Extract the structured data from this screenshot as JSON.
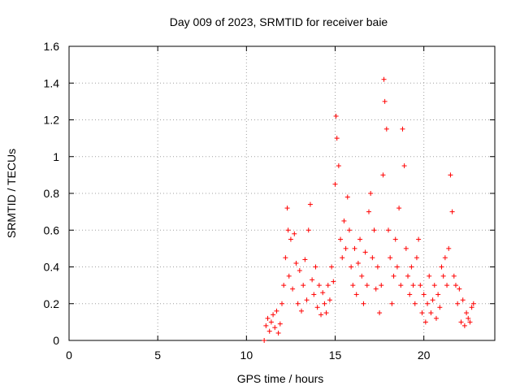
{
  "chart_data": {
    "type": "scatter",
    "title": "Day 009 of 2023, SRMTID for receiver baie",
    "xlabel": "GPS time / hours",
    "ylabel": "SRMTID / TECUs",
    "xlim": [
      0,
      24
    ],
    "ylim": [
      0,
      1.6
    ],
    "xticks": [
      0,
      5,
      10,
      15,
      20
    ],
    "yticks": [
      0,
      0.2,
      0.4,
      0.6,
      0.8,
      1,
      1.2,
      1.4,
      1.6
    ],
    "xtick_labels": [
      "0",
      "5",
      "10",
      "15",
      "20"
    ],
    "ytick_labels": [
      "0",
      "0.2",
      "0.4",
      "0.6",
      "0.8",
      "1",
      "1.2",
      "1.4",
      "1.6"
    ],
    "grid": true,
    "marker": "plus",
    "color": "#ff0000",
    "series": [
      {
        "name": "SRMTID",
        "x": [
          11.0,
          11.1,
          11.2,
          11.3,
          11.4,
          11.5,
          11.6,
          11.7,
          11.8,
          11.9,
          12.0,
          12.1,
          12.2,
          12.3,
          12.35,
          12.4,
          12.5,
          12.6,
          12.7,
          12.8,
          12.9,
          13.0,
          13.1,
          13.2,
          13.3,
          13.4,
          13.5,
          13.6,
          13.7,
          13.8,
          13.9,
          14.0,
          14.1,
          14.2,
          14.3,
          14.4,
          14.5,
          14.6,
          14.7,
          14.8,
          14.9,
          15.0,
          15.05,
          15.1,
          15.2,
          15.3,
          15.4,
          15.5,
          15.6,
          15.7,
          15.8,
          15.9,
          16.0,
          16.1,
          16.2,
          16.3,
          16.4,
          16.5,
          16.6,
          16.7,
          16.8,
          16.9,
          17.0,
          17.1,
          17.2,
          17.3,
          17.4,
          17.5,
          17.6,
          17.7,
          17.75,
          17.8,
          17.9,
          18.0,
          18.1,
          18.2,
          18.3,
          18.4,
          18.5,
          18.6,
          18.7,
          18.8,
          18.9,
          19.0,
          19.1,
          19.2,
          19.3,
          19.4,
          19.5,
          19.6,
          19.7,
          19.8,
          19.9,
          20.0,
          20.1,
          20.2,
          20.3,
          20.4,
          20.5,
          20.6,
          20.7,
          20.8,
          20.9,
          21.0,
          21.1,
          21.2,
          21.3,
          21.4,
          21.5,
          21.6,
          21.7,
          21.8,
          21.9,
          22.0,
          22.1,
          22.2,
          22.3,
          22.4,
          22.5,
          22.6,
          22.7,
          22.8
        ],
        "y": [
          0.0,
          0.08,
          0.12,
          0.05,
          0.1,
          0.14,
          0.07,
          0.16,
          0.04,
          0.09,
          0.2,
          0.3,
          0.45,
          0.72,
          0.6,
          0.35,
          0.55,
          0.28,
          0.58,
          0.42,
          0.2,
          0.38,
          0.16,
          0.3,
          0.44,
          0.22,
          0.6,
          0.74,
          0.33,
          0.25,
          0.4,
          0.18,
          0.3,
          0.14,
          0.26,
          0.2,
          0.15,
          0.3,
          0.22,
          0.4,
          0.32,
          0.85,
          1.22,
          1.1,
          0.95,
          0.55,
          0.45,
          0.65,
          0.5,
          0.78,
          0.6,
          0.4,
          0.3,
          0.5,
          0.25,
          0.42,
          0.55,
          0.35,
          0.2,
          0.48,
          0.3,
          0.7,
          0.8,
          0.45,
          0.6,
          0.28,
          0.4,
          0.15,
          0.3,
          0.9,
          1.42,
          1.3,
          1.15,
          0.6,
          0.45,
          0.2,
          0.35,
          0.55,
          0.4,
          0.72,
          0.3,
          1.15,
          0.95,
          0.5,
          0.35,
          0.25,
          0.4,
          0.3,
          0.2,
          0.45,
          0.55,
          0.3,
          0.15,
          0.25,
          0.1,
          0.2,
          0.35,
          0.15,
          0.22,
          0.3,
          0.12,
          0.25,
          0.18,
          0.4,
          0.35,
          0.45,
          0.3,
          0.5,
          0.9,
          0.7,
          0.35,
          0.3,
          0.2,
          0.28,
          0.1,
          0.22,
          0.08,
          0.15,
          0.12,
          0.1,
          0.18,
          0.2
        ]
      }
    ]
  }
}
